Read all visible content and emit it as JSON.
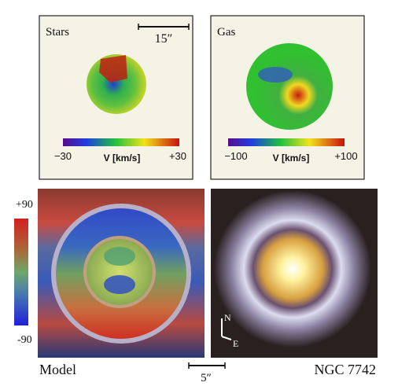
{
  "panels": [
    {
      "label": "Stars",
      "scale": "15″",
      "colorbar": {
        "min": "−30",
        "unit": "V [km/s]",
        "max": "+30"
      }
    },
    {
      "label": "Gas",
      "colorbar": {
        "min": "−100",
        "unit": "V [km/s]",
        "max": "+100"
      }
    }
  ],
  "model_colorbar": {
    "max": "+90",
    "min": "-90"
  },
  "bottom": {
    "left_label": "Model",
    "scale": "5″",
    "right_label": "NGC 7742"
  },
  "compass": {
    "north": "N",
    "east": "E"
  }
}
